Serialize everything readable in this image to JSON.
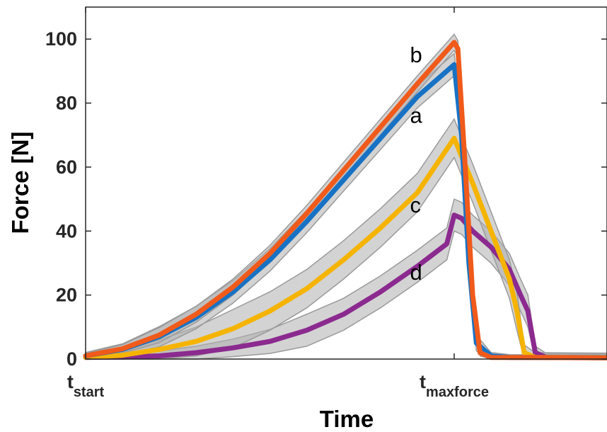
{
  "chart_data": {
    "type": "line",
    "ylabel": "Force [N]",
    "xlabel": "Time",
    "ylim": [
      0,
      110
    ],
    "yticks": [
      0,
      20,
      40,
      60,
      80,
      100
    ],
    "xlim": [
      0,
      1.62
    ],
    "xticks": [
      {
        "value": 0,
        "main": "t",
        "sub": "start"
      },
      {
        "value": 1,
        "main": "t",
        "sub": "maxforce"
      }
    ],
    "grid": false,
    "series": [
      {
        "name": "d",
        "color": "#8B2A8F",
        "band": 5,
        "points": [
          [
            0,
            0.5
          ],
          [
            0.1,
            0.6
          ],
          [
            0.2,
            1
          ],
          [
            0.3,
            2
          ],
          [
            0.4,
            3.5
          ],
          [
            0.5,
            5.5
          ],
          [
            0.6,
            9
          ],
          [
            0.7,
            14
          ],
          [
            0.8,
            21
          ],
          [
            0.9,
            29
          ],
          [
            0.98,
            36
          ],
          [
            1.0,
            45
          ],
          [
            1.02,
            44
          ],
          [
            1.05,
            40
          ],
          [
            1.1,
            35
          ],
          [
            1.15,
            28
          ],
          [
            1.18,
            20
          ],
          [
            1.2,
            15
          ],
          [
            1.22,
            2
          ],
          [
            1.25,
            0.5
          ],
          [
            1.62,
            0.3
          ]
        ]
      },
      {
        "name": "c",
        "color": "#F5B400",
        "band": 6,
        "points": [
          [
            0,
            0.5
          ],
          [
            0.1,
            1.2
          ],
          [
            0.2,
            3
          ],
          [
            0.3,
            5.5
          ],
          [
            0.4,
            9.5
          ],
          [
            0.5,
            15
          ],
          [
            0.6,
            22
          ],
          [
            0.7,
            31
          ],
          [
            0.8,
            41
          ],
          [
            0.9,
            52
          ],
          [
            1.0,
            69
          ],
          [
            1.05,
            55
          ],
          [
            1.1,
            40
          ],
          [
            1.15,
            25
          ],
          [
            1.17,
            15
          ],
          [
            1.19,
            2
          ],
          [
            1.22,
            0.5
          ],
          [
            1.62,
            0.3
          ]
        ]
      },
      {
        "name": "a",
        "color": "#1872C4",
        "band": 3.5,
        "points": [
          [
            0,
            1
          ],
          [
            0.1,
            3
          ],
          [
            0.2,
            7
          ],
          [
            0.3,
            13
          ],
          [
            0.4,
            21
          ],
          [
            0.5,
            31
          ],
          [
            0.6,
            43
          ],
          [
            0.7,
            56
          ],
          [
            0.8,
            69
          ],
          [
            0.9,
            82
          ],
          [
            1.0,
            92
          ],
          [
            1.02,
            70
          ],
          [
            1.04,
            30
          ],
          [
            1.06,
            5
          ],
          [
            1.1,
            1
          ],
          [
            1.15,
            0.5
          ],
          [
            1.62,
            0.3
          ]
        ]
      },
      {
        "name": "b",
        "color": "#F05A1A",
        "band": 2.5,
        "points": [
          [
            0,
            1
          ],
          [
            0.1,
            3.2
          ],
          [
            0.2,
            7.5
          ],
          [
            0.3,
            14
          ],
          [
            0.4,
            22.5
          ],
          [
            0.5,
            33
          ],
          [
            0.6,
            45.5
          ],
          [
            0.7,
            59
          ],
          [
            0.8,
            72.5
          ],
          [
            0.9,
            86
          ],
          [
            1.0,
            99
          ],
          [
            1.01,
            97
          ],
          [
            1.03,
            60
          ],
          [
            1.05,
            20
          ],
          [
            1.07,
            2
          ],
          [
            1.1,
            0.5
          ],
          [
            1.62,
            0.3
          ]
        ]
      }
    ],
    "annotations": [
      {
        "text": "b",
        "x": 0.88,
        "y": 95
      },
      {
        "text": "a",
        "x": 0.88,
        "y": 76
      },
      {
        "text": "c",
        "x": 0.88,
        "y": 48
      },
      {
        "text": "d",
        "x": 0.88,
        "y": 27
      }
    ]
  }
}
